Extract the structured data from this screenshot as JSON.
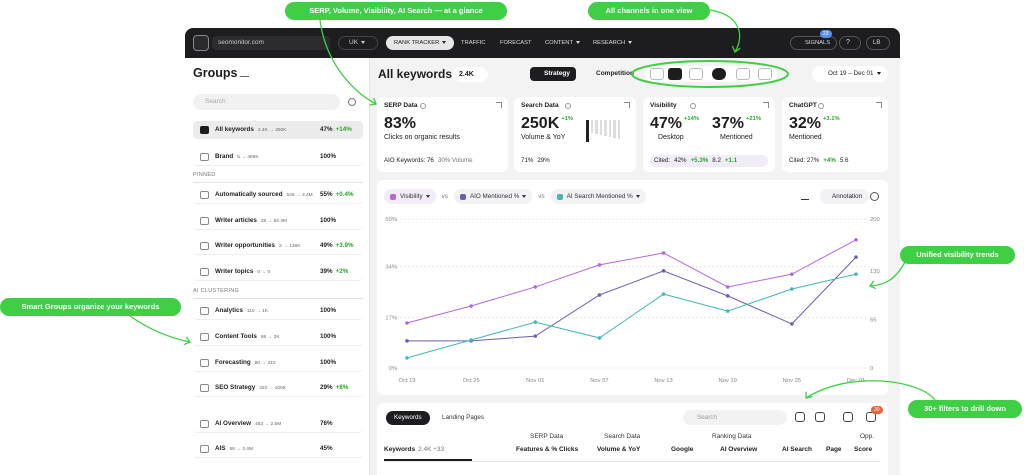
{
  "callouts": [
    "SERP, Volume, Visibility, AI Search — at a glance",
    "All channels in one view",
    "Unified visibility trends",
    "Smart Groups organize your keywords",
    "30+ filters to drill down"
  ],
  "topbar": {
    "site": "seomonitor.com",
    "country": "UK",
    "nav": [
      "RANK TRACKER",
      "TRAFFIC",
      "FORECAST",
      "CONTENT",
      "RESEARCH"
    ],
    "signals": "SIGNALS",
    "signals_badge": "23",
    "help": "?",
    "user": "LB"
  },
  "sidebar": {
    "title": "Groups",
    "search_placeholder": "Search",
    "rows": [
      {
        "name": "All keywords",
        "range": "2.4K → 250K",
        "score": "47%",
        "delta": "+14%"
      },
      {
        "name": "Brand",
        "range": "5 → 469K",
        "score": "100%"
      },
      {
        "section": "PINNED"
      },
      {
        "name": "Automatically sourced",
        "range": "525 → 3.4M",
        "score": "55%",
        "delta": "+0.4%"
      },
      {
        "name": "Writer articles",
        "range": "28 → 62.3M",
        "score": "100%"
      },
      {
        "name": "Writer opportunities",
        "range": "2 → 136K",
        "score": "49%",
        "delta": "+3.9%"
      },
      {
        "name": "Writer topics",
        "range": "0 → 0",
        "score": "39%",
        "delta": "+2%"
      },
      {
        "section": "AI CLUSTERING"
      },
      {
        "name": "Analytics",
        "range": "115 → 1K",
        "score": "100%"
      },
      {
        "name": "Content Tools",
        "range": "68 → 2K",
        "score": "100%"
      },
      {
        "name": "Forecasting",
        "range": "80 → 310",
        "score": "100%"
      },
      {
        "name": "SEO Strategy",
        "range": "320 → 100K",
        "score": "29%",
        "delta": "+8%"
      },
      {
        "name": "AI Overview",
        "range": "463 → 2.5M",
        "score": "76%"
      },
      {
        "name": "AIS",
        "range": "58 → 3.4M",
        "score": "45%"
      }
    ]
  },
  "header": {
    "title": "All keywords",
    "count": "2.4K",
    "strategy": "Strategy",
    "competition": "Competition",
    "date_range": "Oct 19 – Dec 01"
  },
  "cards": [
    {
      "title": "SERP Data",
      "metrics": [
        {
          "value": "83%",
          "label": "Clicks on organic results"
        }
      ],
      "footer": [
        "AIO Keywords: 76",
        "30% Volume"
      ]
    },
    {
      "title": "Search Data",
      "metrics": [
        {
          "value": "250K",
          "delta": "+1%",
          "label": "Volume & YoY"
        }
      ],
      "footer": [
        "71%",
        "29%"
      ]
    },
    {
      "title": "Visibility",
      "metrics": [
        {
          "value": "47%",
          "delta": "+14%",
          "label": "Desktop"
        },
        {
          "value": "37%",
          "delta": "+21%",
          "label": "Mentioned"
        }
      ],
      "footer": [
        "Cited:",
        "42%",
        "+5.3%",
        "8.2",
        "+1.1"
      ]
    },
    {
      "title": "ChatGPT",
      "metrics": [
        {
          "value": "32%",
          "delta": "+3.1%",
          "label": "Mentioned"
        }
      ],
      "footer": [
        "Cited: 27%",
        "+4%",
        "5.6"
      ]
    }
  ],
  "chart_controls": {
    "vs": "vs",
    "annotation": "Annotation"
  },
  "chart_data": {
    "type": "line",
    "x": [
      "Oct 19",
      "Oct 25",
      "Nov 01",
      "Nov 07",
      "Nov 13",
      "Nov 19",
      "Nov 25",
      "Dec 01"
    ],
    "series": [
      {
        "name": "Visibility",
        "color": "#b36ad9",
        "values": [
          15.1,
          20.8,
          27.2,
          34.6,
          38.6,
          27.2,
          31.5,
          43.0
        ]
      },
      {
        "name": "AIO Mentioned %",
        "color": "#6b5fb0",
        "values": [
          9.1,
          9.1,
          10.7,
          24.5,
          32.6,
          24.2,
          14.8,
          37.2
        ]
      },
      {
        "name": "AI Search Mentioned %",
        "color": "#45b8b2",
        "values": [
          3.4,
          9.4,
          15.4,
          10.1,
          24.8,
          19.1,
          26.5,
          31.5
        ]
      }
    ],
    "ylim": [
      0,
      50
    ],
    "yticks": [
      {
        "value": 0,
        "label": "0%"
      },
      {
        "value": 17,
        "label": "17%"
      },
      {
        "value": 34,
        "label": "34%"
      },
      {
        "value": 50,
        "label": "50%"
      }
    ],
    "y2lim": [
      0,
      200
    ],
    "y2ticks": [
      0,
      65,
      130,
      200
    ],
    "grid": true
  },
  "table": {
    "tabs": [
      "Keywords",
      "Landing Pages"
    ],
    "search_placeholder": "Search",
    "filter_badge": "30",
    "groups": [
      "SERP Data",
      "Search Data",
      "Ranking Data",
      "Opp."
    ],
    "keyword_count": "2.4K ÷33",
    "columns": [
      "Keywords",
      "Features & % Clicks",
      "Volume & YoY",
      "Google",
      "AI Overview",
      "AI Search",
      "Page",
      "Score"
    ]
  }
}
